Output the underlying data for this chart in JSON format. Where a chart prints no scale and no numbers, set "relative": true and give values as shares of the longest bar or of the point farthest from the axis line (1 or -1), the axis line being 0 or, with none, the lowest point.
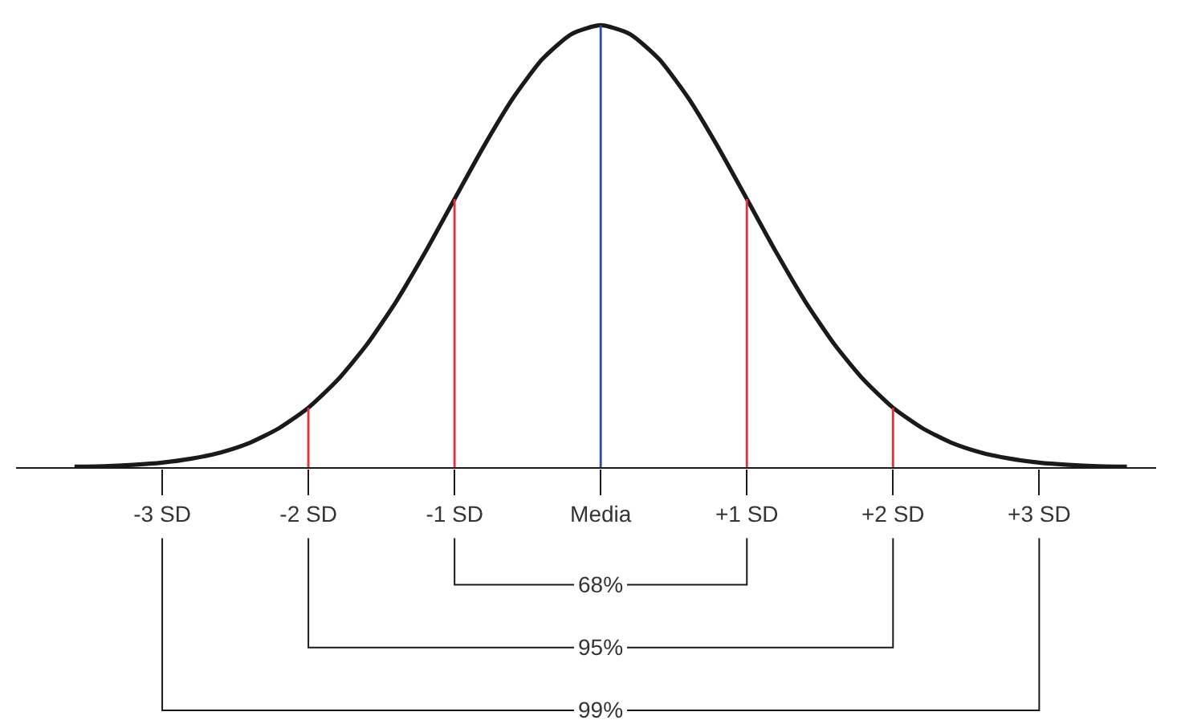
{
  "chart_data": {
    "type": "line",
    "relative": true,
    "marker": "none",
    "x": [
      -3.6,
      -3.4,
      -3.2,
      -3.0,
      -2.8,
      -2.6,
      -2.4,
      -2.2,
      -2.0,
      -1.8,
      -1.6,
      -1.4,
      -1.2,
      -1.0,
      -0.8,
      -0.6,
      -0.4,
      -0.2,
      0,
      0.2,
      0.4,
      0.6,
      0.8,
      1.0,
      1.2,
      1.4,
      1.6,
      1.8,
      2.0,
      2.2,
      2.4,
      2.6,
      2.8,
      3.0,
      3.2,
      3.4,
      3.6
    ],
    "xlim": [
      -4.0,
      3.8
    ],
    "xticks": [
      {
        "value": -3,
        "label": "-3 SD"
      },
      {
        "value": -2,
        "label": "-2 SD"
      },
      {
        "value": -1,
        "label": "-1 SD"
      },
      {
        "value": 0,
        "label": "Media"
      },
      {
        "value": 1,
        "label": "+1 SD"
      },
      {
        "value": 2,
        "label": "+2 SD"
      },
      {
        "value": 3,
        "label": "+3 SD"
      }
    ],
    "series": [
      {
        "color": "#1a1a1a",
        "values": [
          0.002,
          0.003,
          0.006,
          0.011,
          0.02,
          0.034,
          0.056,
          0.089,
          0.135,
          0.198,
          0.278,
          0.375,
          0.487,
          0.607,
          0.726,
          0.835,
          0.923,
          0.98,
          1,
          0.98,
          0.923,
          0.835,
          0.726,
          0.607,
          0.487,
          0.375,
          0.278,
          0.198,
          0.135,
          0.089,
          0.056,
          0.034,
          0.02,
          0.011,
          0.006,
          0.003,
          0.002
        ]
      },
      {
        "x": [
          -2,
          -2
        ],
        "color": "#e8303a",
        "values": [
          0,
          0.135
        ]
      },
      {
        "x": [
          -1,
          -1
        ],
        "color": "#e8303a",
        "values": [
          0,
          0.607
        ]
      },
      {
        "x": [
          0,
          0
        ],
        "color": "#2b4f9e",
        "values": [
          0,
          1
        ]
      },
      {
        "x": [
          1,
          1
        ],
        "color": "#e8303a",
        "values": [
          0,
          0.607
        ]
      },
      {
        "x": [
          2,
          2
        ],
        "color": "#e8303a",
        "values": [
          0,
          0.135
        ]
      }
    ],
    "annotations": [
      "68%",
      "95%",
      "99%"
    ]
  }
}
